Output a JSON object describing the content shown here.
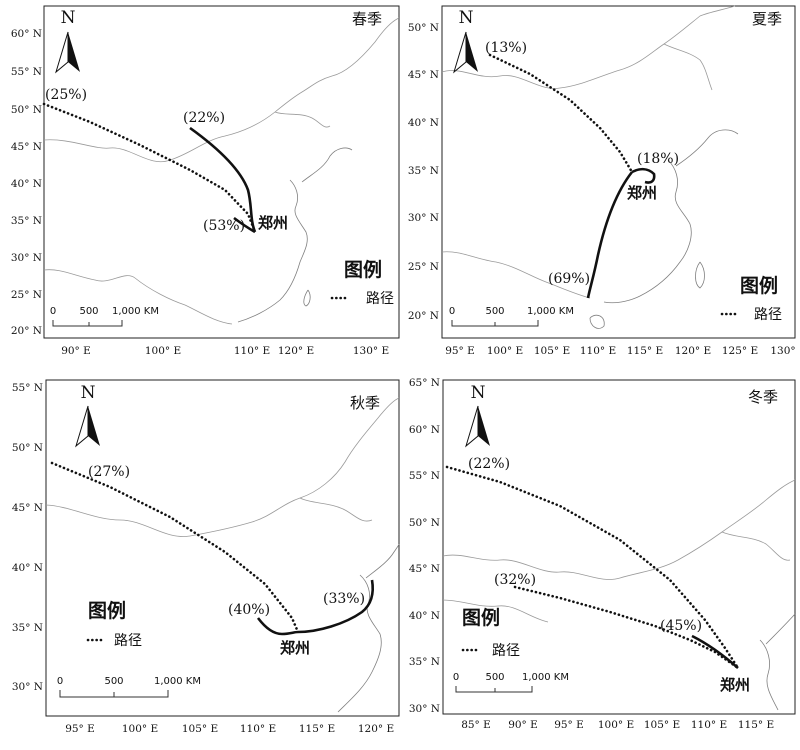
{
  "maps": [
    {
      "season": "春季",
      "city": "郑州",
      "legend_title": "图例",
      "legend_item": "路径",
      "north": "N",
      "scale_labels": [
        "0",
        "500",
        "1,000 KM"
      ],
      "lon_ticks": [
        "90° E",
        "100° E",
        "110° E",
        "120° E",
        "130° E"
      ],
      "lat_ticks": [
        "60° N",
        "55° N",
        "50° N",
        "45° N",
        "40° N",
        "35° N",
        "30° N",
        "25° N",
        "20° N"
      ],
      "paths": [
        {
          "label": "(25%)",
          "style": "dotted"
        },
        {
          "label": "(22%)",
          "style": "solid"
        },
        {
          "label": "(53%)",
          "style": "solid"
        }
      ]
    },
    {
      "season": "夏季",
      "city": "郑州",
      "legend_title": "图例",
      "legend_item": "路径",
      "north": "N",
      "scale_labels": [
        "0",
        "500",
        "1,000 KM"
      ],
      "lon_ticks": [
        "95° E",
        "100° E",
        "105° E",
        "110° E",
        "115° E",
        "120° E",
        "125° E",
        "130°"
      ],
      "lat_ticks": [
        "50° N",
        "45° N",
        "40° N",
        "35° N",
        "30° N",
        "25° N",
        "20° N"
      ],
      "paths": [
        {
          "label": "(13%)",
          "style": "dotted"
        },
        {
          "label": "(18%)",
          "style": "solid"
        },
        {
          "label": "(69%)",
          "style": "solid"
        }
      ]
    },
    {
      "season": "秋季",
      "city": "郑州",
      "legend_title": "图例",
      "legend_item": "路径",
      "north": "N",
      "scale_labels": [
        "0",
        "500",
        "1,000 KM"
      ],
      "lon_ticks": [
        "95° E",
        "100° E",
        "105° E",
        "110° E",
        "115° E",
        "120° E"
      ],
      "lat_ticks": [
        "55° N",
        "50° N",
        "45° N",
        "40° N",
        "35° N",
        "30° N"
      ],
      "paths": [
        {
          "label": "(27%)",
          "style": "dotted"
        },
        {
          "label": "(40%)",
          "style": "solid"
        },
        {
          "label": "(33%)",
          "style": "solid"
        }
      ]
    },
    {
      "season": "冬季",
      "city": "郑州",
      "legend_title": "图例",
      "legend_item": "路径",
      "north": "N",
      "scale_labels": [
        "0",
        "500",
        "1,000 KM"
      ],
      "lon_ticks": [
        "85° E",
        "90° E",
        "95° E",
        "100° E",
        "105° E",
        "110° E",
        "115° E"
      ],
      "lat_ticks": [
        "65° N",
        "60° N",
        "55° N",
        "50° N",
        "45° N",
        "40° N",
        "35° N",
        "30° N"
      ],
      "paths": [
        {
          "label": "(22%)",
          "style": "dotted"
        },
        {
          "label": "(32%)",
          "style": "dotted"
        },
        {
          "label": "(45%)",
          "style": "solid"
        }
      ]
    }
  ]
}
